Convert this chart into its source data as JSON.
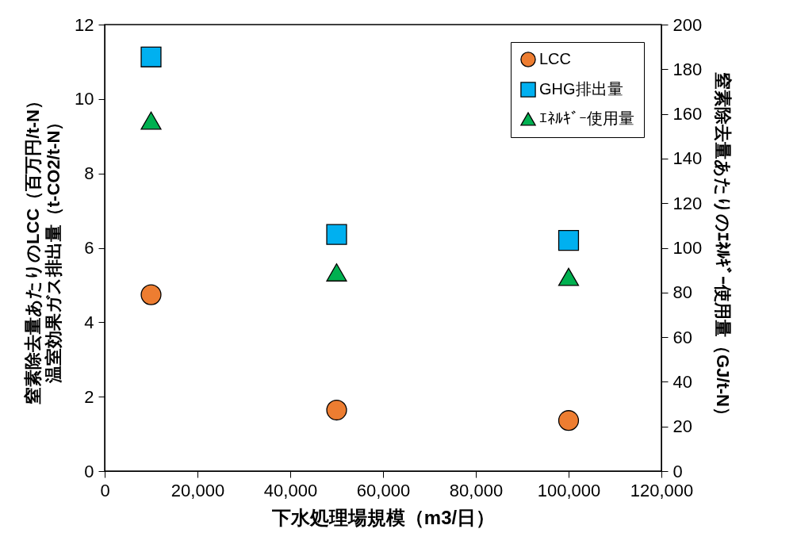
{
  "chart_data": {
    "type": "scatter",
    "xlabel": "下水処理場規模（m3/日）",
    "ylabel": [
      "窒素除去量あたりのLCC（百万円/t-N）",
      "温室効果ガス排出量（t-CO2/t-N）"
    ],
    "y2label": "窒素除去量あたりのｴﾈﾙｷﾞｰ使用量（GJ/t-N）",
    "x": [
      10000,
      50000,
      100000
    ],
    "series": [
      {
        "name": "LCC",
        "color": "#ed7d31",
        "marker": "circle",
        "values": [
          4.74,
          1.64,
          1.36
        ]
      },
      {
        "name": "GHG排出量",
        "color": "#00b0f0",
        "marker": "square",
        "values": [
          11.13,
          6.36,
          6.2
        ]
      },
      {
        "name": "ｴﾈﾙｷﾞｰ使用量",
        "color": "#00b050",
        "marker": "triangle",
        "axis": "y2",
        "values": [
          157,
          89,
          87
        ]
      }
    ],
    "xlim": [
      0,
      120000
    ],
    "xticks": [
      0,
      {
        "value": 20000,
        "label": "20,000"
      },
      {
        "value": 40000,
        "label": "40,000"
      },
      {
        "value": 60000,
        "label": "60,000"
      },
      {
        "value": 80000,
        "label": "80,000"
      },
      {
        "value": 100000,
        "label": "100,000"
      },
      {
        "value": 120000,
        "label": "120,000"
      }
    ],
    "ylim": [
      0,
      12
    ],
    "yticks": [
      0,
      2,
      4,
      6,
      8,
      10,
      12
    ],
    "y2lim": [
      0,
      200
    ],
    "y2ticks": [
      0,
      20,
      40,
      60,
      80,
      100,
      120,
      140,
      160,
      180,
      200
    ],
    "legend": "top right"
  }
}
